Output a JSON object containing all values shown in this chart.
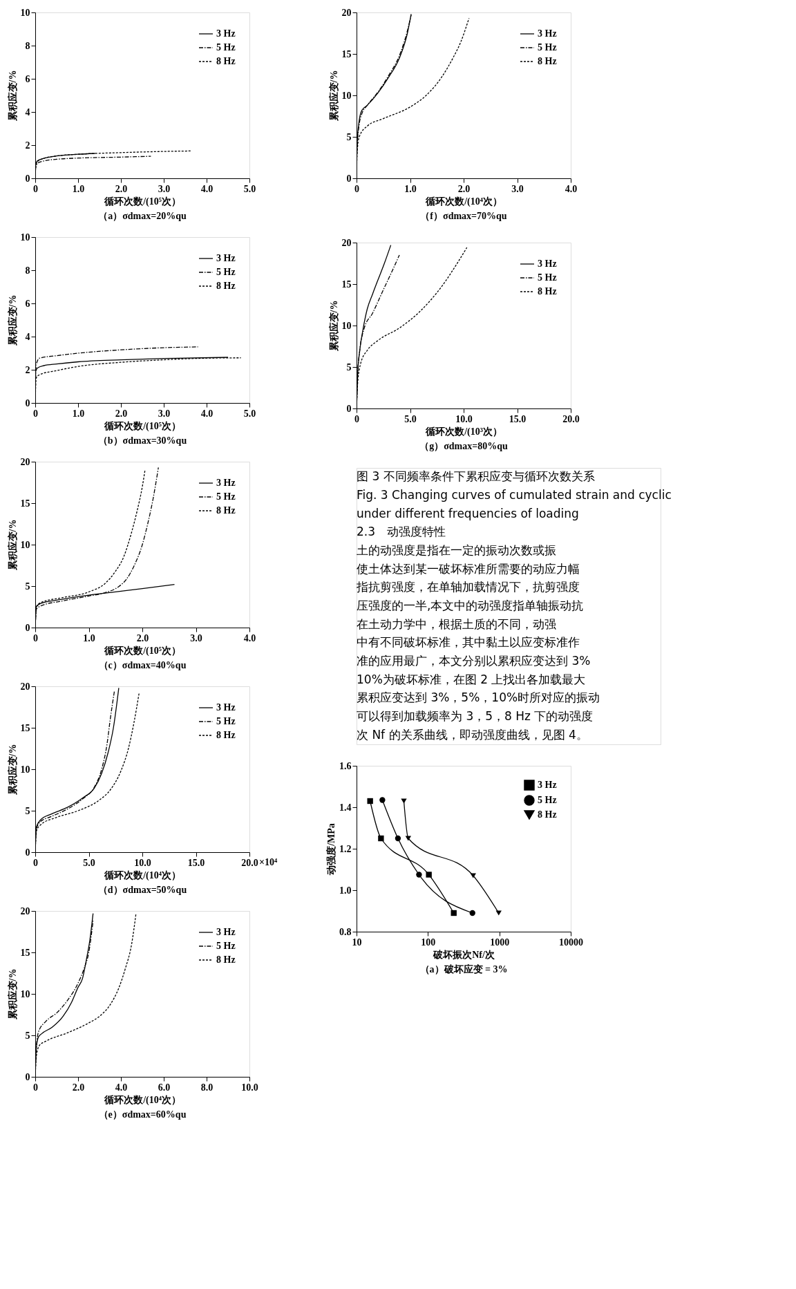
{
  "chart_data": [
    {
      "type": "line",
      "title": "（a）σdmax=20%qu",
      "xlabel": "循环次数/(10⁵次）",
      "ylabel": "累积应变/%",
      "legend": "top right",
      "xlim": [
        0,
        5
      ],
      "ylim": [
        0,
        10
      ],
      "xticks": [
        0,
        {
          "value": 1,
          "label": "1.0"
        },
        {
          "value": 2,
          "label": "2.0"
        },
        {
          "value": 3,
          "label": "3.0"
        },
        {
          "value": 4,
          "label": "4.0"
        },
        {
          "value": 5,
          "label": "5.0"
        }
      ],
      "yticks": [
        0,
        2,
        4,
        6,
        8,
        10
      ],
      "series": [
        {
          "name": "3 Hz",
          "color": "#000000",
          "line_style": "solid",
          "x": [
            0,
            0.01,
            0.05,
            0.2,
            0.5,
            1.0,
            1.4
          ],
          "values": [
            0,
            0.8,
            1.05,
            1.2,
            1.35,
            1.45,
            1.5
          ]
        },
        {
          "name": "5 Hz",
          "color": "#000000",
          "line_style": "dashdot",
          "x": [
            0,
            0.01,
            0.05,
            0.2,
            0.5,
            1.0,
            2.0,
            2.7
          ],
          "values": [
            0,
            0.6,
            0.9,
            1.05,
            1.15,
            1.22,
            1.28,
            1.33
          ]
        },
        {
          "name": "8 Hz",
          "color": "#000000",
          "line_style": "dashed",
          "x": [
            0,
            0.01,
            0.05,
            0.2,
            0.5,
            1.0,
            2.0,
            3.0,
            3.65
          ],
          "values": [
            0,
            0.7,
            1.0,
            1.2,
            1.35,
            1.45,
            1.55,
            1.62,
            1.65
          ]
        }
      ]
    },
    {
      "type": "line",
      "title": "（b）σdmax=30%qu",
      "xlabel": "循环次数/(10⁵次）",
      "ylabel": "累积应变/%",
      "legend": "top right",
      "xlim": [
        0,
        5
      ],
      "ylim": [
        0,
        10
      ],
      "xticks": [
        0,
        {
          "value": 1,
          "label": "1.0"
        },
        {
          "value": 2,
          "label": "2.0"
        },
        {
          "value": 3,
          "label": "3.0"
        },
        {
          "value": 4,
          "label": "4.0"
        },
        {
          "value": 5,
          "label": "5.0"
        }
      ],
      "yticks": [
        0,
        2,
        4,
        6,
        8,
        10
      ],
      "series": [
        {
          "name": "3 Hz",
          "color": "#000000",
          "line_style": "solid",
          "x": [
            0,
            0.01,
            0.05,
            0.2,
            0.5,
            1.0,
            2.0,
            3.0,
            4.5
          ],
          "values": [
            0,
            1.9,
            2.1,
            2.25,
            2.35,
            2.48,
            2.6,
            2.68,
            2.75
          ]
        },
        {
          "name": "5 Hz",
          "color": "#000000",
          "line_style": "dashdot",
          "x": [
            0,
            0.02,
            0.1,
            0.5,
            1.0,
            2.0,
            3.0,
            3.8
          ],
          "values": [
            0,
            2.3,
            2.7,
            2.85,
            3.0,
            3.2,
            3.33,
            3.38
          ]
        },
        {
          "name": "8 Hz",
          "color": "#000000",
          "line_style": "dashed",
          "x": [
            0,
            0.02,
            0.1,
            0.5,
            1.0,
            2.0,
            3.0,
            4.0,
            4.8
          ],
          "values": [
            0,
            1.5,
            1.7,
            1.95,
            2.2,
            2.45,
            2.6,
            2.7,
            2.72
          ]
        }
      ]
    },
    {
      "type": "line",
      "title": "（c）σdmax=40%qu",
      "xlabel": "循环次数/(10⁵次）",
      "ylabel": "累积应变/%",
      "legend": "top right",
      "xlim": [
        0,
        4
      ],
      "ylim": [
        0,
        20
      ],
      "xticks": [
        0,
        {
          "value": 1,
          "label": "1.0"
        },
        {
          "value": 2,
          "label": "2.0"
        },
        {
          "value": 3,
          "label": "3.0"
        },
        {
          "value": 4,
          "label": "4.0"
        }
      ],
      "yticks": [
        0,
        5,
        10,
        15,
        20
      ],
      "series": [
        {
          "name": "3 Hz",
          "color": "#000000",
          "line_style": "solid",
          "x": [
            0,
            0.02,
            0.1,
            0.5,
            1.0,
            1.5,
            2.0,
            2.6
          ],
          "values": [
            0,
            2.5,
            2.9,
            3.4,
            3.9,
            4.3,
            4.7,
            5.2
          ]
        },
        {
          "name": "5 Hz",
          "color": "#000000",
          "line_style": "dashdot",
          "x": [
            0,
            0.02,
            0.1,
            0.5,
            1.0,
            1.3,
            1.55,
            1.7,
            1.85,
            2.0,
            2.1,
            2.2,
            2.3
          ],
          "values": [
            0,
            2.2,
            2.6,
            3.2,
            3.8,
            4.2,
            4.9,
            5.8,
            7.5,
            10,
            12.5,
            15.5,
            19.3
          ]
        },
        {
          "name": "8 Hz",
          "color": "#000000",
          "line_style": "dashed",
          "x": [
            0,
            0.02,
            0.1,
            0.5,
            1.0,
            1.3,
            1.5,
            1.65,
            1.8,
            1.9,
            2.0,
            2.05
          ],
          "values": [
            0,
            2.5,
            3.0,
            3.6,
            4.3,
            5.3,
            6.8,
            8.5,
            11.5,
            14,
            17,
            19
          ]
        }
      ]
    },
    {
      "type": "line",
      "title": "（d）σdmax=50%qu",
      "xlabel": "循环次数/(10⁴次）",
      "ylabel": "累积应变/%",
      "legend": "top right",
      "xlim": [
        0,
        20
      ],
      "ylim": [
        0,
        20
      ],
      "xticks": [
        0,
        {
          "value": 5,
          "label": "5.0"
        },
        {
          "value": 10,
          "label": "10.0"
        },
        {
          "value": 15,
          "label": "15.0"
        },
        {
          "value": 20,
          "label": "20.0"
        }
      ],
      "yticks": [
        0,
        5,
        10,
        15,
        20
      ],
      "annotations": [
        "×10⁴"
      ],
      "series": [
        {
          "name": "3 Hz",
          "color": "#000000",
          "line_style": "solid",
          "x": [
            0,
            0.1,
            0.5,
            1.5,
            3.0,
            4.5,
            5.5,
            6.2,
            6.8,
            7.3,
            7.8
          ],
          "values": [
            0,
            3,
            3.9,
            4.6,
            5.4,
            6.6,
            7.7,
            9.5,
            12,
            15,
            19.8
          ]
        },
        {
          "name": "5 Hz",
          "color": "#000000",
          "line_style": "dashdot",
          "x": [
            0,
            0.1,
            0.5,
            1.5,
            3.0,
            4.5,
            5.5,
            6.2,
            6.7,
            7.0,
            7.4
          ],
          "values": [
            0,
            2.8,
            3.7,
            4.3,
            5.2,
            6.5,
            7.8,
            10,
            13,
            16,
            19.5
          ]
        },
        {
          "name": "8 Hz",
          "color": "#000000",
          "line_style": "dashed",
          "x": [
            0,
            0.1,
            0.5,
            2.0,
            4.0,
            6.0,
            7.0,
            8.0,
            8.7,
            9.2,
            9.7
          ],
          "values": [
            0,
            2.5,
            3.3,
            4.2,
            5.0,
            6.3,
            7.5,
            9.8,
            12.5,
            15.5,
            19.2
          ]
        }
      ]
    },
    {
      "type": "line",
      "title": "（e）σdmax=60%qu",
      "xlabel": "循环次数/(10⁴次）",
      "ylabel": "累积应变/%",
      "legend": "top right",
      "xlim": [
        0,
        10
      ],
      "ylim": [
        0,
        20
      ],
      "xticks": [
        0,
        {
          "value": 2,
          "label": "2.0"
        },
        {
          "value": 4,
          "label": "4.0"
        },
        {
          "value": 6,
          "label": "6.0"
        },
        {
          "value": 8,
          "label": "8.0"
        },
        {
          "value": 10,
          "label": "10.0"
        }
      ],
      "yticks": [
        0,
        5,
        10,
        15,
        20
      ],
      "series": [
        {
          "name": "3 Hz",
          "color": "#000000",
          "line_style": "solid",
          "x": [
            0,
            0.05,
            0.15,
            0.3,
            0.8,
            1.3,
            1.7,
            2.0,
            2.2,
            2.4,
            2.55,
            2.7
          ],
          "values": [
            0,
            3.5,
            4.8,
            5.2,
            6.0,
            7.3,
            9.0,
            10.8,
            11.8,
            14.3,
            16.5,
            19.7
          ]
        },
        {
          "name": "5 Hz",
          "color": "#000000",
          "line_style": "dashdot",
          "x": [
            0,
            0.05,
            0.15,
            0.5,
            1.0,
            1.5,
            2.0,
            2.3,
            2.5,
            2.7
          ],
          "values": [
            0,
            3.5,
            5.4,
            6.7,
            7.7,
            9.2,
            11.3,
            13.2,
            15,
            18.8
          ]
        },
        {
          "name": "8 Hz",
          "color": "#000000",
          "line_style": "dashed",
          "x": [
            0,
            0.05,
            0.2,
            0.5,
            1.5,
            2.5,
            3.0,
            3.5,
            3.9,
            4.2,
            4.5,
            4.7
          ],
          "values": [
            0,
            2.5,
            3.8,
            4.3,
            5.3,
            6.5,
            7.3,
            8.7,
            10.7,
            13,
            16,
            19.6
          ]
        }
      ]
    },
    {
      "type": "line",
      "title": "（f）σdmax=70%qu",
      "xlabel": "循环次数/(10⁴次）",
      "ylabel": "累积应变/%",
      "legend": "top right",
      "xlim": [
        0,
        4
      ],
      "ylim": [
        0,
        20
      ],
      "xticks": [
        0,
        {
          "value": 1,
          "label": "1.0"
        },
        {
          "value": 2,
          "label": "2.0"
        },
        {
          "value": 3,
          "label": "3.0"
        },
        {
          "value": 4,
          "label": "4.0"
        }
      ],
      "yticks": [
        0,
        5,
        10,
        15,
        20
      ],
      "series": [
        {
          "name": "3 Hz",
          "color": "#000000",
          "line_style": "solid",
          "x": [
            0,
            0.01,
            0.05,
            0.1,
            0.2,
            0.4,
            0.6,
            0.8,
            0.95,
            1.02
          ],
          "values": [
            0,
            4,
            7,
            8.2,
            8.8,
            10.3,
            12.2,
            14.5,
            17.5,
            19.8
          ]
        },
        {
          "name": "5 Hz",
          "color": "#000000",
          "line_style": "dashdot",
          "x": [
            0,
            0.01,
            0.05,
            0.1,
            0.2,
            0.4,
            0.6,
            0.8,
            0.95,
            1.02
          ],
          "values": [
            0,
            3.5,
            6.5,
            7.8,
            8.8,
            10.4,
            12.4,
            14.8,
            17.8,
            19.7
          ]
        },
        {
          "name": "8 Hz",
          "color": "#000000",
          "line_style": "dashed",
          "x": [
            0,
            0.01,
            0.05,
            0.2,
            0.5,
            1.0,
            1.3,
            1.6,
            1.8,
            1.95,
            2.1
          ],
          "values": [
            0,
            3,
            5,
            6.3,
            7.2,
            8.6,
            10,
            12.3,
            14.5,
            16.5,
            19.3
          ]
        }
      ]
    },
    {
      "type": "line",
      "title": "（g）σdmax=80%qu",
      "xlabel": "循环次数/(10³次）",
      "ylabel": "累积应变/%",
      "legend": "top right",
      "xlim": [
        0,
        20
      ],
      "ylim": [
        0,
        20
      ],
      "xticks": [
        0,
        {
          "value": 5,
          "label": "5.0"
        },
        {
          "value": 10,
          "label": "10.0"
        },
        {
          "value": 15,
          "label": "15.0"
        },
        {
          "value": 20,
          "label": "20.0"
        }
      ],
      "yticks": [
        0,
        5,
        10,
        15,
        20
      ],
      "series": [
        {
          "name": "3 Hz",
          "color": "#000000",
          "line_style": "solid",
          "x": [
            0,
            0.1,
            0.3,
            0.6,
            1.0,
            1.5,
            2.0,
            2.6,
            3.2
          ],
          "values": [
            0,
            4,
            7,
            9.5,
            12,
            13.8,
            15.5,
            17.5,
            19.7
          ]
        },
        {
          "name": "5 Hz",
          "color": "#000000",
          "line_style": "dashdot",
          "x": [
            0,
            0.1,
            0.3,
            0.7,
            1.5,
            2.5,
            3.3,
            4.0
          ],
          "values": [
            0,
            4,
            7,
            9.6,
            11.5,
            14.3,
            16.5,
            18.5
          ]
        },
        {
          "name": "8 Hz",
          "color": "#000000",
          "line_style": "dashed",
          "x": [
            0,
            0.1,
            0.4,
            1.0,
            2.0,
            4.0,
            6.0,
            8.0,
            9.3,
            10.3
          ],
          "values": [
            0,
            3,
            5.5,
            7,
            8.2,
            9.7,
            11.8,
            14.8,
            17.3,
            19.4
          ]
        }
      ]
    },
    {
      "type": "other",
      "annotations": [
        "图 3 不同频率条件下累积应变与循环次数关系",
        "Fig. 3 Changing curves of cumulated strain and cyclic",
        "under different frequencies of loading",
        "2.3　动强度特性",
        "　　土的动强度是指在一定的振动次数或振",
        "使土体达到某一破坏标准所需要的动应力幅",
        "指抗剪强度，在单轴加载情况下，抗剪强度",
        "压强度的一半,本文中的动强度指单轴振动抗",
        "　　在土动力学中，根据土质的不同，动强",
        "中有不同破坏标准，其中黏土以应变标准作",
        "准的应用最广，本文分别以累积应变达到 3%",
        "10%为破坏标准，在图 2 上找出各加载最大",
        "累积应变达到 3%，5%，10%时所对应的振动",
        "可以得到加载频率为 3，5，8 Hz 下的动强度",
        "次 Nf 的关系曲线，即动强度曲线，见图 4。"
      ]
    },
    {
      "type": "line",
      "title": "（a）破坏应变 = 3%",
      "xlabel": "破坏振次Nf/次",
      "ylabel": "动强度/MPa",
      "legend": "top right",
      "log": "x",
      "xlim": [
        10,
        10000
      ],
      "ylim": [
        0.8,
        1.6
      ],
      "xticks": [
        10,
        100,
        1000,
        10000
      ],
      "yticks": [
        {
          "value": 0.8,
          "label": "0.8"
        },
        {
          "value": 1.0,
          "label": "1.0"
        },
        {
          "value": 1.2,
          "label": "1.2"
        },
        {
          "value": 1.4,
          "label": "1.4"
        },
        {
          "value": 1.6,
          "label": "1.6"
        }
      ],
      "series": [
        {
          "name": "3 Hz",
          "color": "#000000",
          "line_style": "solid",
          "marker": "square",
          "x": [
            15.5,
            22,
            103,
            230
          ],
          "values": [
            1.43,
            1.25,
            1.075,
            0.89
          ]
        },
        {
          "name": "5 Hz",
          "color": "#000000",
          "line_style": "solid",
          "marker": "circle",
          "x": [
            23,
            38,
            75,
            420
          ],
          "values": [
            1.435,
            1.25,
            1.075,
            0.89
          ]
        },
        {
          "name": "8 Hz",
          "color": "#000000",
          "line_style": "solid",
          "marker": "triangle",
          "x": [
            46,
            53,
            430,
            980
          ],
          "values": [
            1.43,
            1.25,
            1.07,
            0.89
          ]
        }
      ]
    }
  ]
}
